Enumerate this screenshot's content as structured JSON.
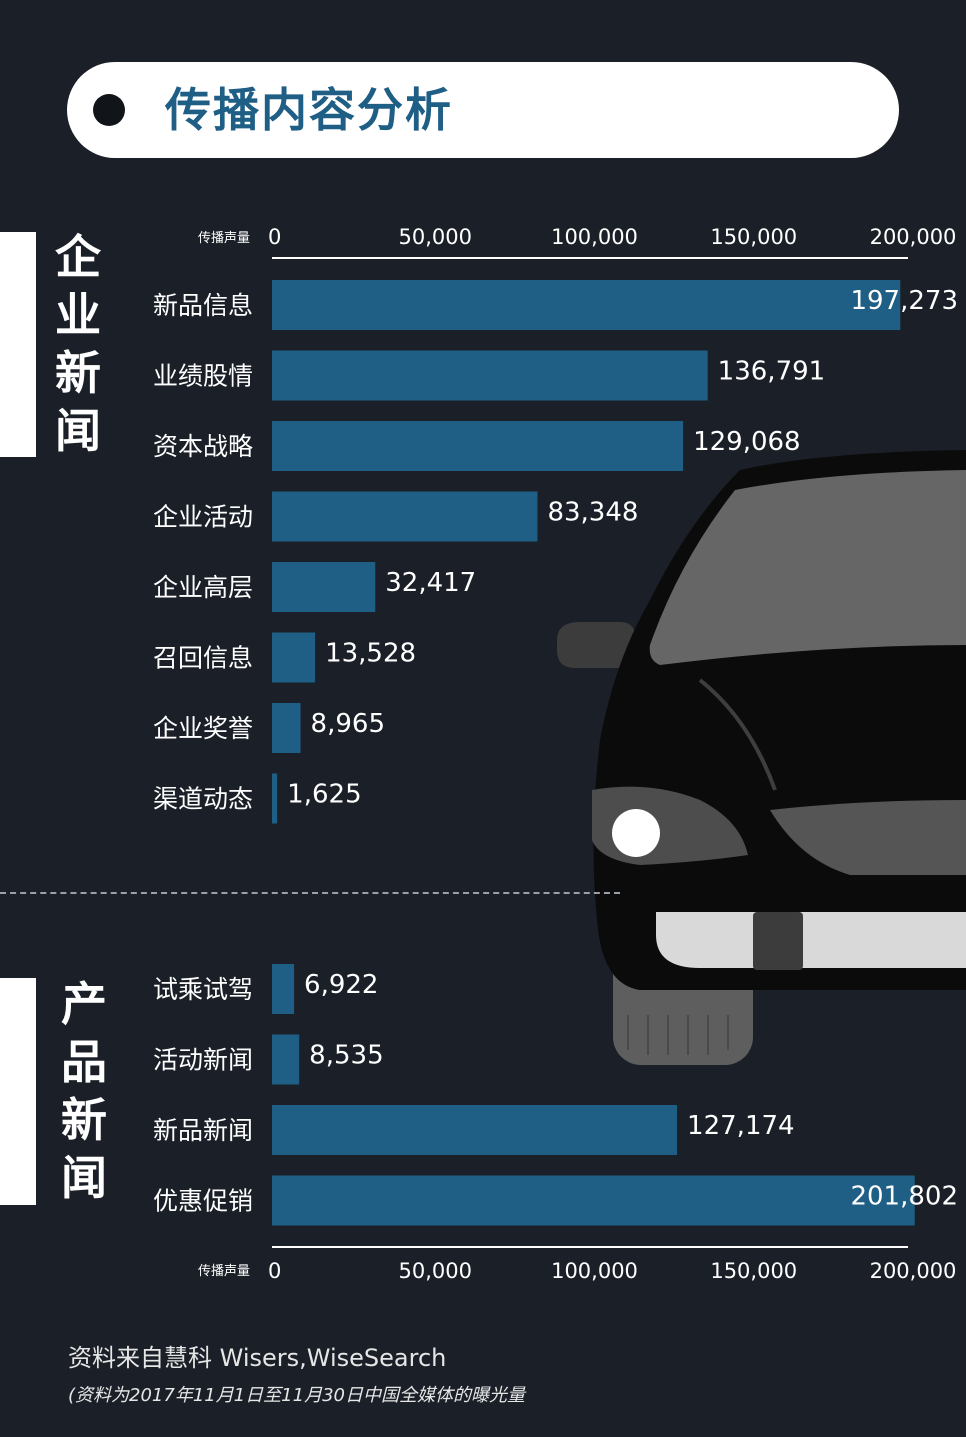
{
  "header": {
    "title": "传播内容分析"
  },
  "sections": [
    {
      "label": [
        "企",
        "业",
        "新",
        "闻"
      ]
    },
    {
      "label": [
        "产",
        "品",
        "新",
        "闻"
      ]
    }
  ],
  "axis_label": "传播声量",
  "chart_data": [
    {
      "type": "bar",
      "orientation": "horizontal",
      "section": "企业新闻",
      "categories": [
        "新品信息",
        "业绩股情",
        "资本战略",
        "企业活动",
        "企业高层",
        "召回信息",
        "企业奖誉",
        "渠道动态"
      ],
      "values": [
        197273,
        136791,
        129068,
        83348,
        32417,
        13528,
        8965,
        1625
      ],
      "value_labels": [
        "197,273",
        "136,791",
        "129,068",
        "83,348",
        "32,417",
        "13,528",
        "8,965",
        "1,625"
      ],
      "xlabel": "传播声量",
      "xlim": [
        0,
        200000
      ],
      "ticks": [
        0,
        50000,
        100000,
        150000,
        200000
      ],
      "tick_labels": [
        "0",
        "50,000",
        "100,000",
        "150,000",
        "200,000"
      ],
      "axis_position": "top",
      "bar_color": "#1f5e85"
    },
    {
      "type": "bar",
      "orientation": "horizontal",
      "section": "产品新闻",
      "categories": [
        "试乘试驾",
        "活动新闻",
        "新品新闻",
        "优惠促销"
      ],
      "values": [
        6922,
        8535,
        127174,
        201802
      ],
      "value_labels": [
        "6,922",
        "8,535",
        "127,174",
        "201,802"
      ],
      "xlabel": "传播声量",
      "xlim": [
        0,
        200000
      ],
      "ticks": [
        0,
        50000,
        100000,
        150000,
        200000
      ],
      "tick_labels": [
        "0",
        "50,000",
        "100,000",
        "150,000",
        "200,000"
      ],
      "axis_position": "bottom",
      "bar_color": "#1f5e85"
    }
  ],
  "footer": {
    "source": "资料来自慧科 Wisers,WiseSearch",
    "note": "(资料为2017年11月1日至11月30日中国全媒体的曝光量"
  },
  "illustration": {
    "icon": "car-front-icon"
  }
}
